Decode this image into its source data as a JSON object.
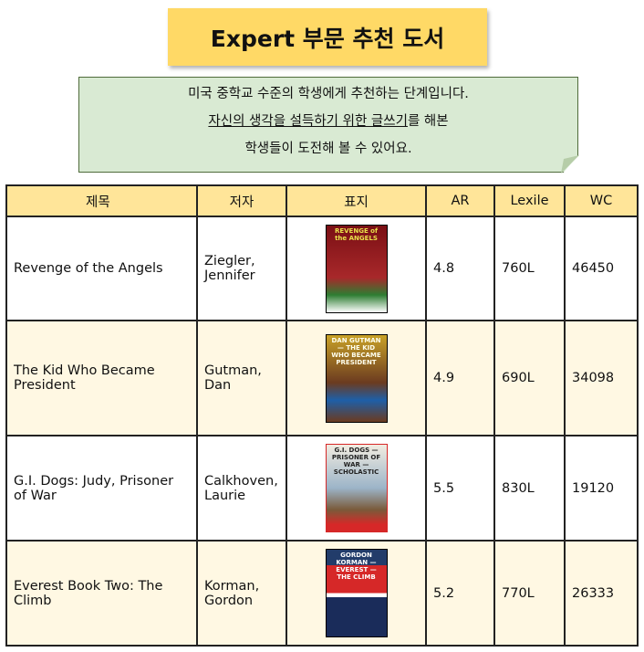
{
  "title": "Expert 부문 추천 도서",
  "note": {
    "line1": "미국 중학교 수준의 학생에게 추천하는 단계입니다.",
    "line2_underlined": "자신의 생각을 설득하기 위한 글쓰기",
    "line2_rest": "를 해본",
    "line3": "학생들이 도전해 볼 수 있어요."
  },
  "table": {
    "headers": [
      "제목",
      "저자",
      "표지",
      "AR",
      "Lexile",
      "WC"
    ],
    "rows": [
      {
        "title": "Revenge of the Angels",
        "author": "Ziegler, Jennifer",
        "cover": "REVENGE of the ANGELS",
        "ar": "4.8",
        "lexile": "760L",
        "wc": "46450"
      },
      {
        "title": "The Kid Who Became President",
        "author": "Gutman, Dan",
        "cover": "DAN GUTMAN — THE KID WHO BECAME PRESIDENT",
        "ar": "4.9",
        "lexile": "690L",
        "wc": "34098"
      },
      {
        "title": "G.I. Dogs: Judy, Prisoner of War",
        "author": "Calkhoven, Laurie",
        "cover": "G.I. DOGS — PRISONER OF WAR — SCHOLASTIC",
        "ar": "5.5",
        "lexile": "830L",
        "wc": "19120"
      },
      {
        "title": "Everest Book Two: The Climb",
        "author": "Korman, Gordon",
        "cover": "GORDON KORMAN — EVEREST — THE CLIMB",
        "ar": "5.2",
        "lexile": "770L",
        "wc": "26333"
      }
    ]
  }
}
